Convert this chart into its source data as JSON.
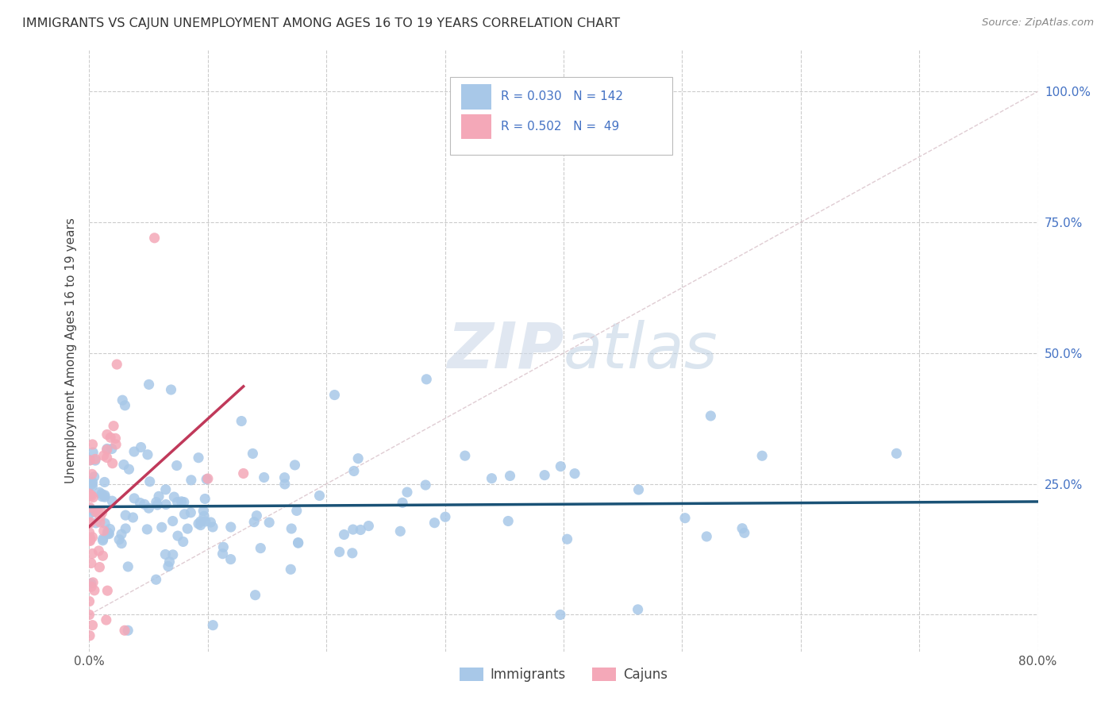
{
  "title": "IMMIGRANTS VS CAJUN UNEMPLOYMENT AMONG AGES 16 TO 19 YEARS CORRELATION CHART",
  "source": "Source: ZipAtlas.com",
  "ylabel": "Unemployment Among Ages 16 to 19 years",
  "xlim": [
    0.0,
    0.8
  ],
  "ylim": [
    -0.07,
    1.08
  ],
  "xtick_positions": [
    0.0,
    0.1,
    0.2,
    0.3,
    0.4,
    0.5,
    0.6,
    0.7,
    0.8
  ],
  "xticklabels": [
    "0.0%",
    "",
    "",
    "",
    "",
    "",
    "",
    "",
    "80.0%"
  ],
  "ytick_positions": [
    0.0,
    0.25,
    0.5,
    0.75,
    1.0
  ],
  "yticklabels_right": [
    "",
    "25.0%",
    "50.0%",
    "75.0%",
    "100.0%"
  ],
  "immigrant_color": "#a8c8e8",
  "cajun_color": "#f4a8b8",
  "immigrant_line_color": "#1a5276",
  "cajun_line_color": "#c0395a",
  "diag_line_color": "#d8c0c8",
  "background_color": "#ffffff",
  "grid_color": "#cccccc",
  "watermark_color": "#ccd8e8",
  "legend_R_immigrants": "0.030",
  "legend_N_immigrants": "142",
  "legend_R_cajuns": "0.502",
  "legend_N_cajuns": "49",
  "legend_text_color": "#4472c4",
  "immigrant_n": 142,
  "cajun_n": 49
}
